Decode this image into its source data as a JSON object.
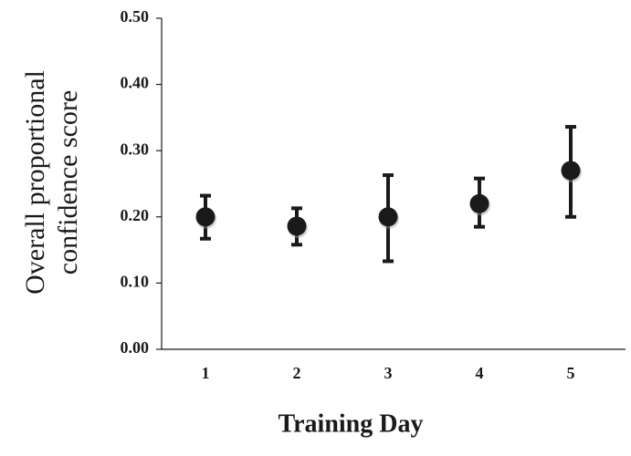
{
  "chart_data": {
    "type": "scatter",
    "title": "",
    "xlabel": "Training Day",
    "ylabel_lines": [
      "Overall proportional",
      "confidence score"
    ],
    "categories": [
      "1",
      "2",
      "3",
      "4",
      "5"
    ],
    "series": [
      {
        "values": [
          0.2,
          0.186,
          0.2,
          0.22,
          0.27
        ],
        "error_low": [
          0.167,
          0.158,
          0.133,
          0.185,
          0.2
        ],
        "error_high": [
          0.232,
          0.213,
          0.263,
          0.258,
          0.336
        ]
      }
    ],
    "ylim": [
      0,
      0.5
    ],
    "yticks": [
      "0.00",
      "0.10",
      "0.20",
      "0.30",
      "0.40",
      "0.50"
    ],
    "grid": false,
    "legend": "none",
    "colors": {
      "marker": "#1a1a1a",
      "axis": "#1a1a1a"
    }
  }
}
